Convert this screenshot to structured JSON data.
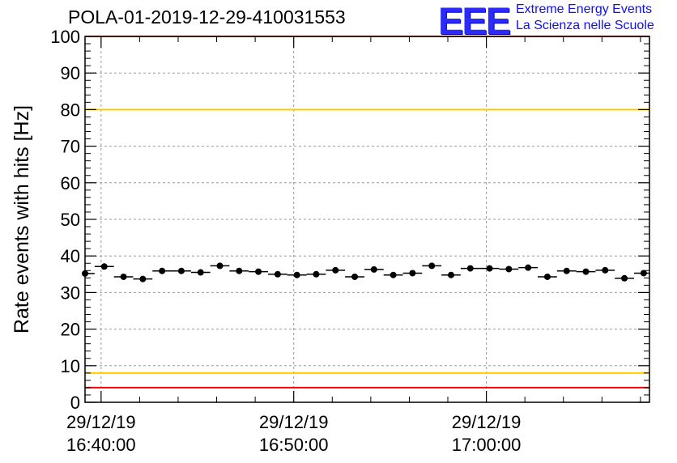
{
  "header": {
    "title": "POLA-01-2019-12-29-410031553",
    "logo_text": "EEE",
    "logo_line1": "Extreme Energy Events",
    "logo_line2": "La Scienza nelle Scuole"
  },
  "chart_data": {
    "type": "scatter",
    "title": "POLA-01-2019-12-29-410031553",
    "xlabel": "",
    "ylabel": "Rate events with hits [Hz]",
    "ylim": [
      0,
      100
    ],
    "yticks": [
      0,
      10,
      20,
      30,
      40,
      50,
      60,
      70,
      80,
      90,
      100
    ],
    "xlim": [
      "2019-12-29 16:39:10",
      "2019-12-29 17:08:28"
    ],
    "xticks": [
      {
        "line1": "29/12/19",
        "line2": "16:40:00",
        "t": "2019-12-29 16:40:00"
      },
      {
        "line1": "29/12/19",
        "line2": "16:50:00",
        "t": "2019-12-29 16:50:00"
      },
      {
        "line1": "29/12/19",
        "line2": "17:00:00",
        "t": "2019-12-29 17:00:00"
      }
    ],
    "grid": true,
    "reference_lines": [
      {
        "y": 4,
        "color": "#ff0000"
      },
      {
        "y": 8,
        "color": "#ffcc00"
      },
      {
        "y": 80,
        "color": "#ffcc00"
      },
      {
        "y": 100,
        "color": "#ff0000"
      }
    ],
    "series": [
      {
        "marker_color": "#000000",
        "x": [
          "16:39:10",
          "16:40:10",
          "16:41:10",
          "16:42:10",
          "16:43:10",
          "16:44:10",
          "16:45:10",
          "16:46:10",
          "16:47:10",
          "16:48:10",
          "16:49:10",
          "16:50:10",
          "16:51:10",
          "16:52:10",
          "16:53:10",
          "16:54:10",
          "16:55:10",
          "16:56:10",
          "16:57:10",
          "16:58:10",
          "16:59:10",
          "17:00:10",
          "17:01:10",
          "17:02:10",
          "17:03:10",
          "17:04:10",
          "17:05:10",
          "17:06:10",
          "17:07:10",
          "17:08:10"
        ],
        "y": [
          35.2,
          37.1,
          34.3,
          33.7,
          35.9,
          35.9,
          35.5,
          37.3,
          35.9,
          35.7,
          35.0,
          34.8,
          35.0,
          36.1,
          34.3,
          36.3,
          34.8,
          35.3,
          37.3,
          34.8,
          36.6,
          36.6,
          36.4,
          36.8,
          34.3,
          35.9,
          35.7,
          36.1,
          33.9,
          35.3
        ]
      }
    ]
  }
}
